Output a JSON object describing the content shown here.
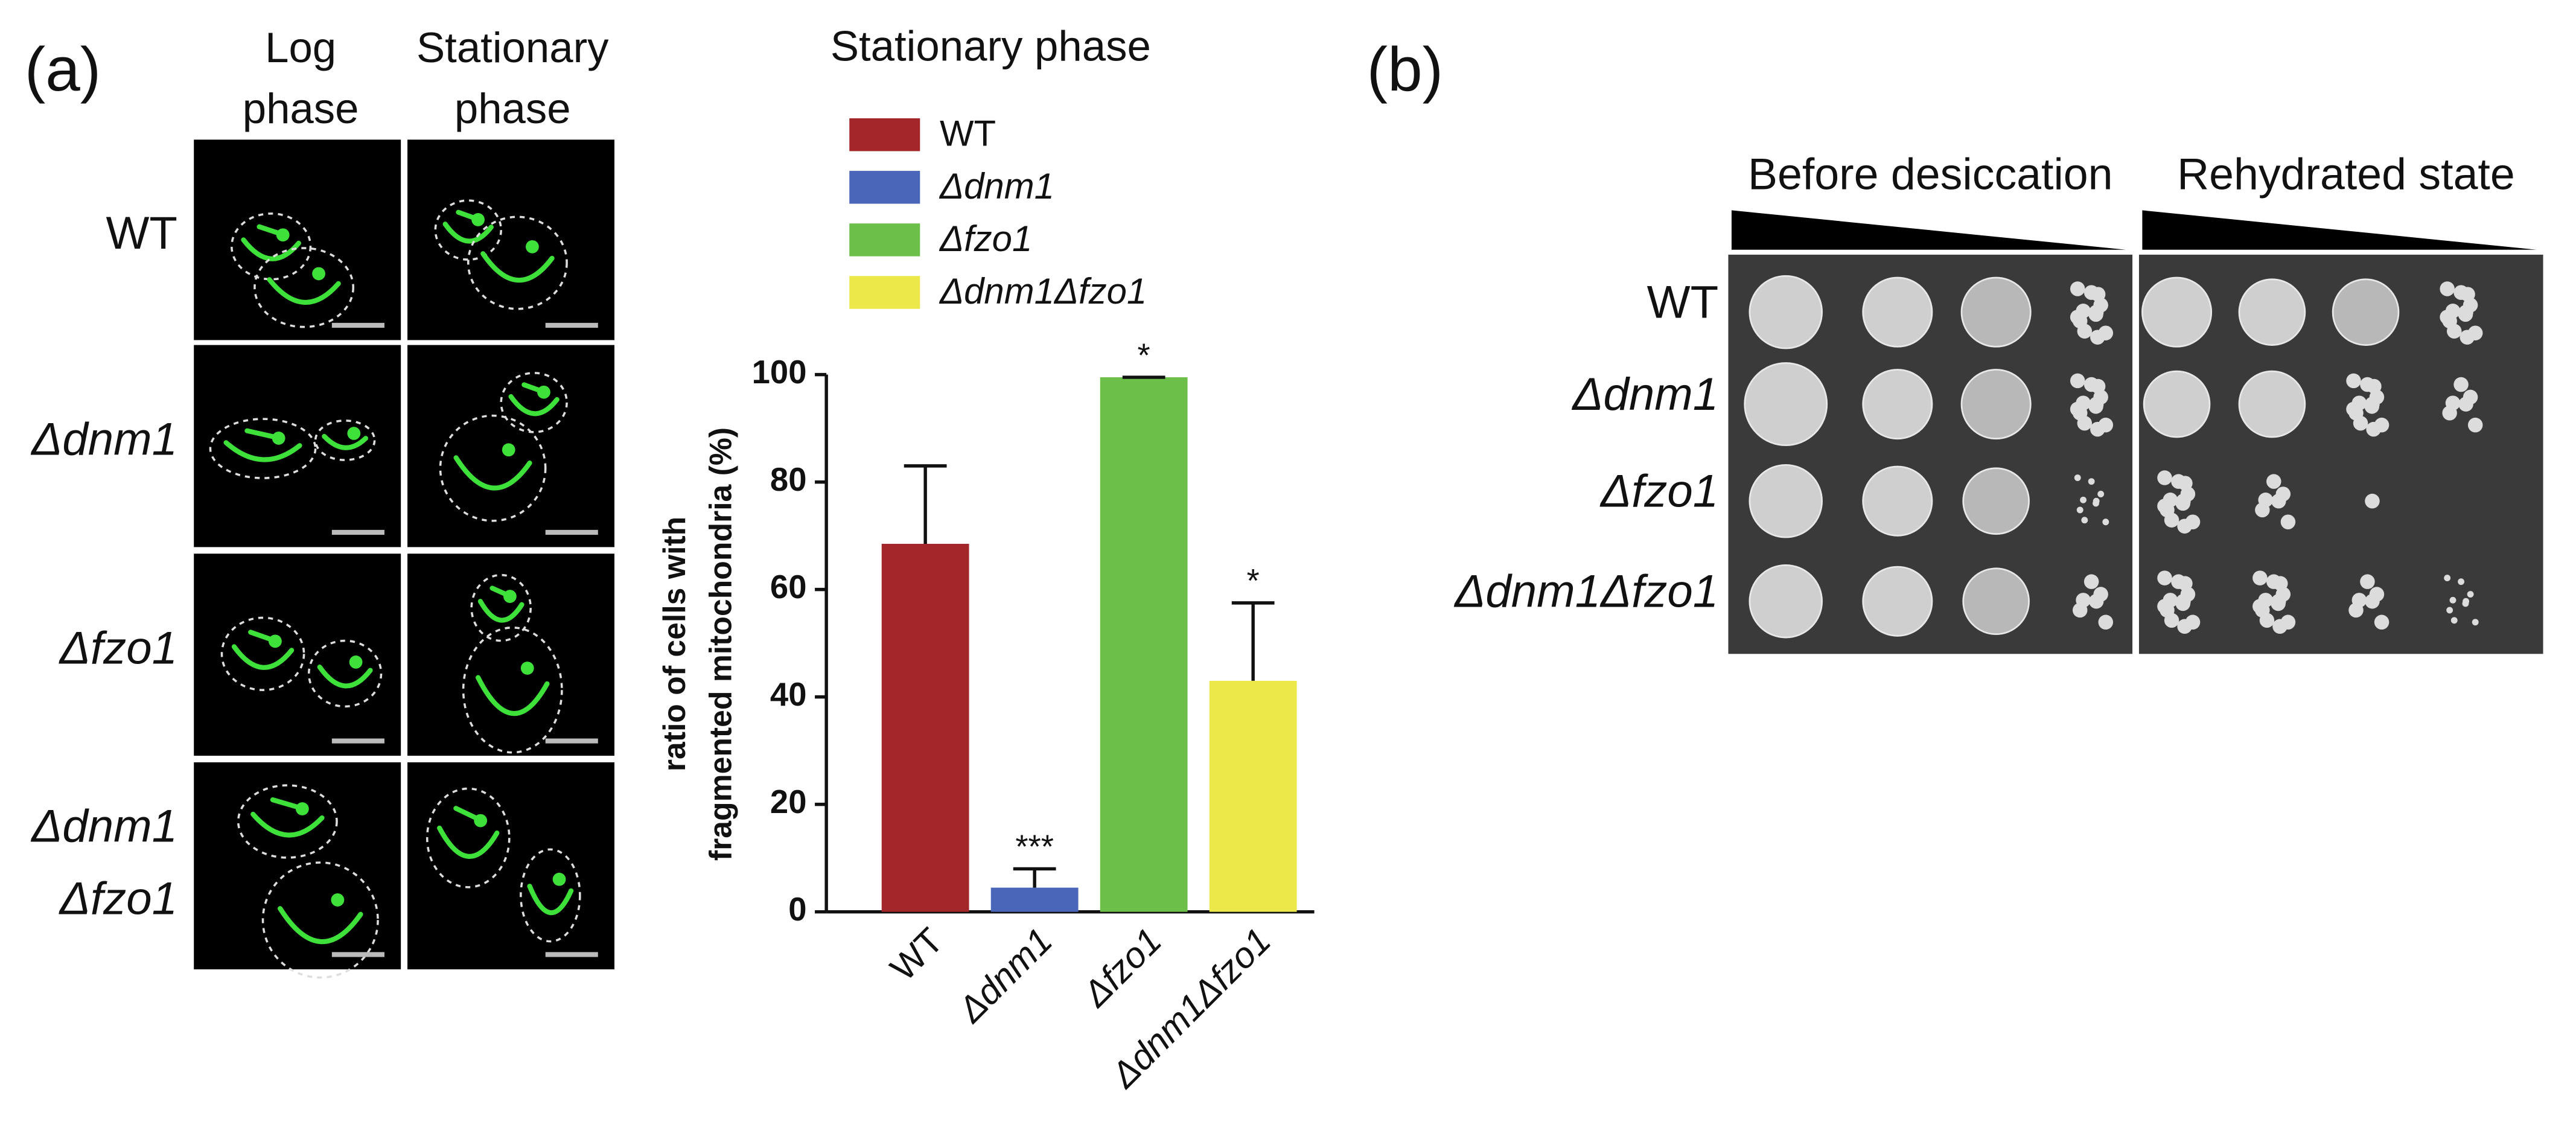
{
  "panel_labels": [
    "(a)",
    "(b)"
  ],
  "micrographs": {
    "columns": [
      [
        "Log",
        "phase"
      ],
      [
        "Stationary",
        "phase"
      ]
    ],
    "rows": [
      [
        "WT"
      ],
      [
        "Δdnm1"
      ],
      [
        "Δfzo1"
      ],
      [
        "Δdnm1",
        "Δfzo1"
      ]
    ]
  },
  "chart_data": {
    "type": "bar",
    "title": "Stationary phase",
    "categories": [
      "WT",
      "Δdnm1",
      "Δfzo1",
      "Δdnm1Δfzo1"
    ],
    "values": [
      68.5,
      4.5,
      99.5,
      43
    ],
    "errors": [
      14.5,
      3.5,
      0,
      14.5
    ],
    "significance": [
      null,
      "***",
      "*",
      "*"
    ],
    "colors": [
      "#a3262a",
      "#4a66b8",
      "#6cc04a",
      "#ece84a"
    ],
    "ylabel": [
      "ratio of cells with",
      "fragmented mitochondria (%)"
    ],
    "ylim": [
      0,
      100
    ],
    "yticks": [
      0,
      20,
      40,
      60,
      80,
      100
    ],
    "legend": true
  },
  "spot_assay": {
    "columns": [
      "Before desiccation",
      "Rehydrated state"
    ],
    "rows": [
      "WT",
      "Δdnm1",
      "Δfzo1",
      "Δdnm1Δfzo1"
    ]
  }
}
